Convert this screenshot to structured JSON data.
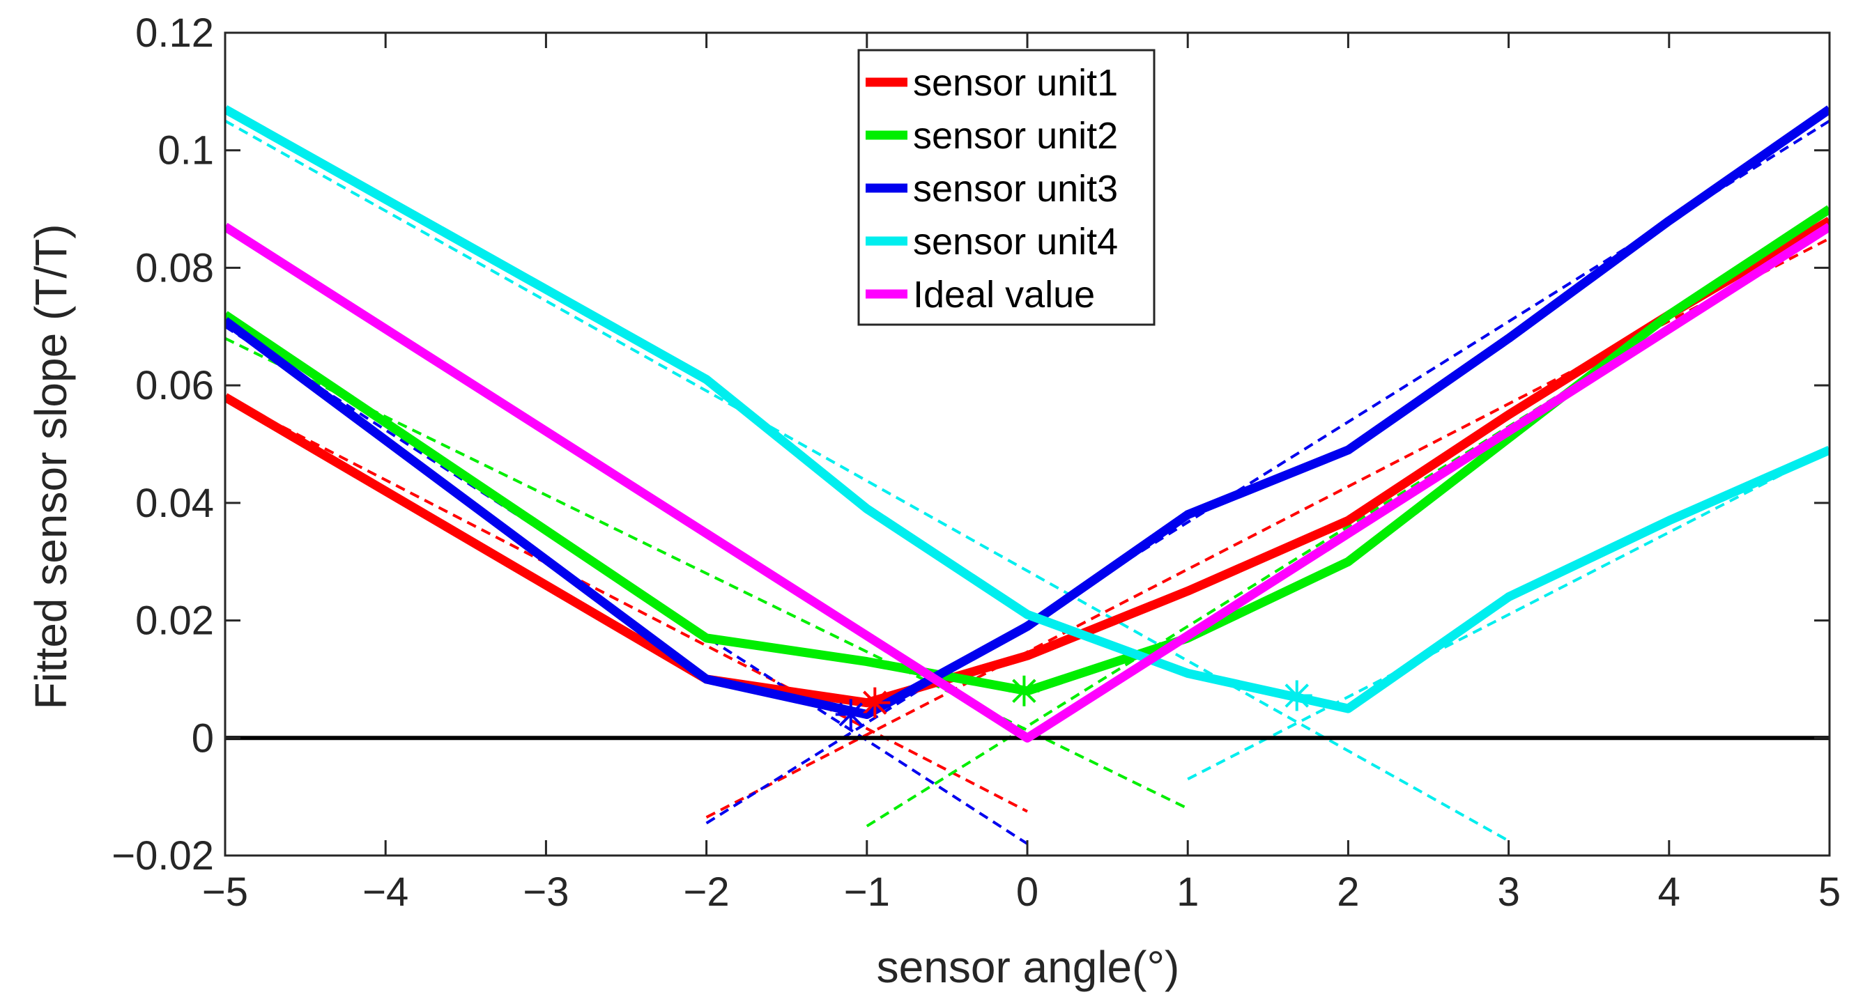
{
  "chart_data": {
    "type": "line",
    "title": "",
    "xlabel": "sensor angle(°)",
    "ylabel": "Fitted sensor slope (T/T)",
    "xlim": [
      -5,
      5
    ],
    "ylim": [
      -0.02,
      0.12
    ],
    "xticks": [
      -5,
      -4,
      -3,
      -2,
      -1,
      0,
      1,
      2,
      3,
      4,
      5
    ],
    "xtick_labels": [
      "−5",
      "−4",
      "−3",
      "−2",
      "−1",
      "0",
      "1",
      "2",
      "3",
      "4",
      "5"
    ],
    "yticks": [
      -0.02,
      0,
      0.02,
      0.04,
      0.06,
      0.08,
      0.1,
      0.12
    ],
    "ytick_labels": [
      "−0.02",
      "0",
      "0.02",
      "0.04",
      "0.06",
      "0.08",
      "0.1",
      "0.12"
    ],
    "grid": false,
    "legend_position": "top-center",
    "zero_line": {
      "y": 0,
      "color": "#000000"
    },
    "series": [
      {
        "name": "sensor unit1",
        "color": "#ff0000",
        "x": [
          -5,
          -2,
          -1,
          0,
          1,
          2,
          3,
          4,
          5
        ],
        "y": [
          0.058,
          0.01,
          0.006,
          0.014,
          0.025,
          0.037,
          0.055,
          0.072,
          0.088
        ]
      },
      {
        "name": "sensor unit2",
        "color": "#00ee00",
        "x": [
          -5,
          -2,
          -1,
          0,
          1,
          2,
          3,
          4,
          5
        ],
        "y": [
          0.072,
          0.017,
          0.013,
          0.008,
          0.017,
          0.03,
          0.051,
          0.072,
          0.09
        ]
      },
      {
        "name": "sensor unit3",
        "color": "#0000ee",
        "x": [
          -5,
          -2,
          -1,
          0,
          1,
          2,
          3,
          4,
          5
        ],
        "y": [
          0.071,
          0.01,
          0.004,
          0.019,
          0.038,
          0.049,
          0.068,
          0.088,
          0.107
        ]
      },
      {
        "name": "sensor unit4",
        "color": "#00eeee",
        "x": [
          -5,
          -2,
          -1,
          0,
          1,
          2,
          3,
          4,
          5
        ],
        "y": [
          0.107,
          0.061,
          0.039,
          0.021,
          0.011,
          0.005,
          0.024,
          0.037,
          0.049
        ]
      },
      {
        "name": "Ideal value",
        "color": "#ff00ff",
        "x": [
          -5,
          0,
          5
        ],
        "y": [
          0.087,
          0,
          0.087
        ]
      }
    ],
    "fit_lines": [
      {
        "series": "sensor unit1",
        "color": "#ff0000",
        "x": [
          -5,
          0
        ],
        "y": [
          0.058,
          -0.0125
        ]
      },
      {
        "series": "sensor unit1",
        "color": "#ff0000",
        "x": [
          -2,
          5
        ],
        "y": [
          -0.0135,
          0.085
        ]
      },
      {
        "series": "sensor unit2",
        "color": "#00ee00",
        "x": [
          -5,
          1
        ],
        "y": [
          0.068,
          -0.012
        ]
      },
      {
        "series": "sensor unit2",
        "color": "#00ee00",
        "x": [
          -1,
          5
        ],
        "y": [
          -0.015,
          0.087
        ]
      },
      {
        "series": "sensor unit3",
        "color": "#0000ee",
        "x": [
          -5,
          0
        ],
        "y": [
          0.07,
          -0.018
        ]
      },
      {
        "series": "sensor unit3",
        "color": "#0000ee",
        "x": [
          -2,
          5
        ],
        "y": [
          -0.0145,
          0.105
        ]
      },
      {
        "series": "sensor unit4",
        "color": "#00eeee",
        "x": [
          -5,
          3
        ],
        "y": [
          0.105,
          -0.0175
        ]
      },
      {
        "series": "sensor unit4",
        "color": "#00eeee",
        "x": [
          1,
          5
        ],
        "y": [
          -0.007,
          0.049
        ]
      }
    ],
    "minima_markers": [
      {
        "series": "sensor unit1",
        "color": "#ff0000",
        "x": -0.95,
        "y": 0.006
      },
      {
        "series": "sensor unit2",
        "color": "#00ee00",
        "x": -0.02,
        "y": 0.008
      },
      {
        "series": "sensor unit3",
        "color": "#0000ee",
        "x": -1.1,
        "y": 0.004
      },
      {
        "series": "sensor unit4",
        "color": "#00eeee",
        "x": 1.68,
        "y": 0.0072
      }
    ]
  }
}
